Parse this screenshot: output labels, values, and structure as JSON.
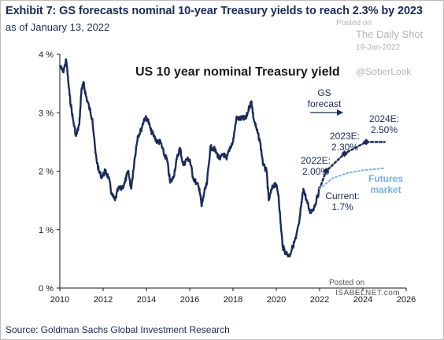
{
  "header": {
    "title": "Exhibit 7: GS forecasts nominal 10-year Treasury yields to reach 2.3% by 2023",
    "subtitle": "as of January 13, 2022"
  },
  "watermark": {
    "posted_on": "Posted on",
    "site": "The Daily Shot",
    "date": "19-Jan-2022",
    "handle": "@SoberLook",
    "posted_on_bottom": "Posted on",
    "isabelnet": "ISABELNET.com"
  },
  "footer": {
    "source": "Source: Goldman Sachs Global Investment Research"
  },
  "colors": {
    "series": "#1a2b5a",
    "futures": "#7ab0e0",
    "title": "#1a2b5a"
  },
  "chart_data": {
    "type": "line",
    "title": "US 10 year nominal Treasury yield",
    "xlabel": "",
    "ylabel": "",
    "xlim": [
      2010,
      2026
    ],
    "ylim": [
      0,
      4
    ],
    "x_ticks": [
      "2010",
      "2012",
      "2014",
      "2016",
      "2018",
      "2020",
      "2022",
      "2024",
      "2026"
    ],
    "y_ticks": [
      "0 %",
      "1 %",
      "2 %",
      "3 %",
      "4 %"
    ],
    "grid": false,
    "series": [
      {
        "style": "solid",
        "x": [
          2010.0,
          2010.15,
          2010.3,
          2010.45,
          2010.6,
          2010.75,
          2010.9,
          2011.0,
          2011.1,
          2011.2,
          2011.35,
          2011.5,
          2011.65,
          2011.8,
          2011.95,
          2012.1,
          2012.25,
          2012.4,
          2012.55,
          2012.7,
          2012.85,
          2013.0,
          2013.15,
          2013.3,
          2013.45,
          2013.6,
          2013.75,
          2013.9,
          2014.05,
          2014.2,
          2014.35,
          2014.5,
          2014.65,
          2014.8,
          2014.95,
          2015.1,
          2015.25,
          2015.4,
          2015.55,
          2015.7,
          2015.85,
          2016.0,
          2016.15,
          2016.3,
          2016.45,
          2016.55,
          2016.65,
          2016.8,
          2016.95,
          2017.1,
          2017.25,
          2017.4,
          2017.55,
          2017.7,
          2017.85,
          2018.0,
          2018.15,
          2018.3,
          2018.45,
          2018.6,
          2018.75,
          2018.85,
          2018.95,
          2019.1,
          2019.25,
          2019.4,
          2019.55,
          2019.65,
          2019.8,
          2019.95,
          2020.1,
          2020.2,
          2020.3,
          2020.45,
          2020.6,
          2020.75,
          2020.9,
          2021.05,
          2021.15,
          2021.25,
          2021.4,
          2021.55,
          2021.7,
          2021.85,
          2022.0
        ],
        "values": [
          3.8,
          3.7,
          3.9,
          3.3,
          2.9,
          2.6,
          2.8,
          3.4,
          3.5,
          3.3,
          3.1,
          2.9,
          2.3,
          2.0,
          1.9,
          2.0,
          1.9,
          1.6,
          1.5,
          1.7,
          1.7,
          1.8,
          2.0,
          1.7,
          2.2,
          2.6,
          2.7,
          2.9,
          2.9,
          2.7,
          2.6,
          2.5,
          2.5,
          2.3,
          2.2,
          1.8,
          1.9,
          2.2,
          2.4,
          2.1,
          2.2,
          2.2,
          1.9,
          1.8,
          1.7,
          1.4,
          1.6,
          1.8,
          2.4,
          2.4,
          2.3,
          2.2,
          2.3,
          2.2,
          2.4,
          2.5,
          2.9,
          2.9,
          2.9,
          2.9,
          3.1,
          3.2,
          2.9,
          2.7,
          2.5,
          2.1,
          2.0,
          1.5,
          1.7,
          1.8,
          1.6,
          1.1,
          0.7,
          0.6,
          0.55,
          0.7,
          0.85,
          1.1,
          1.4,
          1.7,
          1.5,
          1.3,
          1.35,
          1.5,
          1.7
        ]
      },
      {
        "name": "GS forecast",
        "style": "dotted",
        "x": [
          2022.0,
          2022.3,
          2023.15,
          2024.15,
          2025.0
        ],
        "values": [
          1.7,
          2.0,
          2.3,
          2.5,
          2.5
        ]
      },
      {
        "name": "Futures market",
        "style": "dotted",
        "x": [
          2022.0,
          2022.6,
          2023.3,
          2024.1,
          2025.0
        ],
        "values": [
          1.7,
          1.88,
          1.97,
          2.02,
          2.05
        ]
      }
    ],
    "annotations": [
      {
        "text": "GS forecast",
        "lines": [
          "GS",
          "forecast"
        ]
      },
      {
        "text": "2024E: 2.50%",
        "lines": [
          "2024E:",
          "2.50%"
        ],
        "x": 2024.15,
        "y": 2.5
      },
      {
        "text": "2023E: 2.30%",
        "lines": [
          "2023E:",
          "2.30%"
        ],
        "x": 2023.15,
        "y": 2.3
      },
      {
        "text": "2022E: 2.00%",
        "lines": [
          "2022E:",
          "2.00%"
        ],
        "x": 2022.3,
        "y": 2.0
      },
      {
        "text": "Current: 1.7%",
        "lines": [
          "Current:",
          "1.7%"
        ],
        "x": 2022.0,
        "y": 1.7
      },
      {
        "text": "Futures market",
        "lines": [
          "Futures",
          "market"
        ]
      }
    ]
  }
}
